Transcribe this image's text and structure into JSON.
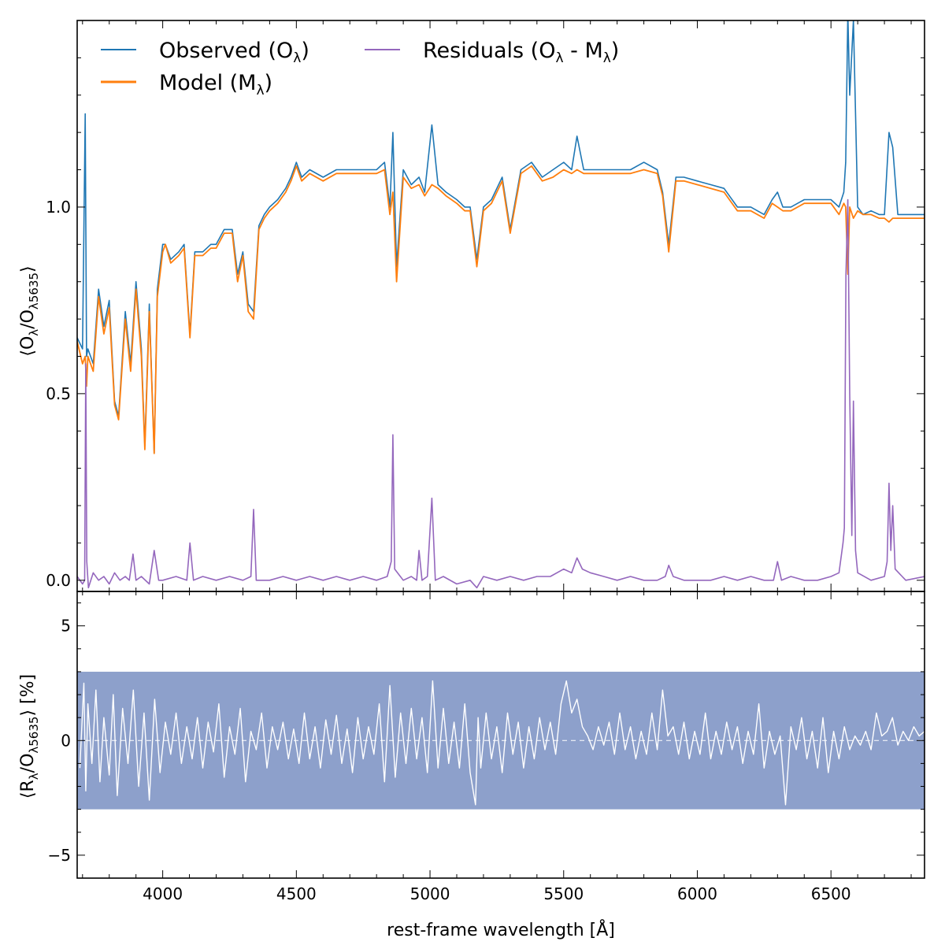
{
  "chart_data": [
    {
      "type": "line",
      "panel": "top",
      "ylabel": "⟨O_λ/O_λ5635⟩",
      "xlim": [
        3680,
        6850
      ],
      "ylim": [
        -0.03,
        1.5
      ],
      "yticks": [
        0.0,
        0.5,
        1.0
      ],
      "ytick_labels": [
        "0.0",
        "0.5",
        "1.0"
      ],
      "legend_position": "top-left",
      "grid": false,
      "series": [
        {
          "name": "Observed (O_λ)",
          "color": "#1f77b4",
          "note_style": "thin",
          "x": [
            3680,
            3700,
            3710,
            3715,
            3720,
            3740,
            3760,
            3780,
            3800,
            3820,
            3835,
            3860,
            3880,
            3900,
            3920,
            3933,
            3950,
            3968,
            3980,
            4000,
            4010,
            4030,
            4060,
            4080,
            4102,
            4120,
            4150,
            4180,
            4200,
            4230,
            4260,
            4280,
            4300,
            4320,
            4340,
            4360,
            4380,
            4400,
            4430,
            4460,
            4480,
            4500,
            4520,
            4550,
            4600,
            4650,
            4700,
            4750,
            4800,
            4830,
            4850,
            4861,
            4875,
            4900,
            4930,
            4959,
            4980,
            5007,
            5030,
            5060,
            5100,
            5130,
            5150,
            5175,
            5200,
            5230,
            5270,
            5300,
            5340,
            5380,
            5420,
            5460,
            5500,
            5530,
            5550,
            5575,
            5600,
            5650,
            5700,
            5750,
            5800,
            5850,
            5870,
            5893,
            5920,
            5950,
            6000,
            6050,
            6100,
            6150,
            6200,
            6250,
            6280,
            6300,
            6320,
            6350,
            6400,
            6450,
            6500,
            6530,
            6548,
            6555,
            6563,
            6570,
            6584,
            6600,
            6620,
            6650,
            6680,
            6700,
            6717,
            6731,
            6750,
            6780,
            6800,
            6850
          ],
          "y": [
            0.65,
            0.62,
            1.25,
            0.6,
            0.62,
            0.58,
            0.78,
            0.68,
            0.75,
            0.48,
            0.44,
            0.72,
            0.58,
            0.8,
            0.62,
            0.36,
            0.74,
            0.34,
            0.78,
            0.9,
            0.9,
            0.86,
            0.88,
            0.9,
            0.66,
            0.88,
            0.88,
            0.9,
            0.9,
            0.94,
            0.94,
            0.82,
            0.88,
            0.74,
            0.72,
            0.95,
            0.98,
            1.0,
            1.02,
            1.05,
            1.08,
            1.12,
            1.08,
            1.1,
            1.08,
            1.1,
            1.1,
            1.1,
            1.1,
            1.12,
            1.0,
            1.2,
            0.84,
            1.1,
            1.06,
            1.08,
            1.04,
            1.22,
            1.06,
            1.04,
            1.02,
            1.0,
            1.0,
            0.86,
            1.0,
            1.02,
            1.08,
            0.94,
            1.1,
            1.12,
            1.08,
            1.1,
            1.12,
            1.1,
            1.19,
            1.1,
            1.1,
            1.1,
            1.1,
            1.1,
            1.12,
            1.1,
            1.04,
            0.9,
            1.08,
            1.08,
            1.07,
            1.06,
            1.05,
            1.0,
            1.0,
            0.98,
            1.02,
            1.04,
            1.0,
            1.0,
            1.02,
            1.02,
            1.02,
            1.0,
            1.04,
            1.12,
            1.52,
            1.3,
            1.5,
            1.0,
            0.98,
            0.99,
            0.98,
            0.98,
            1.2,
            1.16,
            0.98,
            0.98,
            0.98,
            0.98
          ]
        },
        {
          "name": "Model (M_λ)",
          "color": "#ff7f0e",
          "x": [
            3680,
            3700,
            3710,
            3715,
            3720,
            3740,
            3760,
            3780,
            3800,
            3820,
            3835,
            3860,
            3880,
            3900,
            3920,
            3933,
            3950,
            3968,
            3980,
            4000,
            4010,
            4030,
            4060,
            4080,
            4102,
            4120,
            4150,
            4180,
            4200,
            4230,
            4260,
            4280,
            4300,
            4320,
            4340,
            4360,
            4380,
            4400,
            4430,
            4460,
            4480,
            4500,
            4520,
            4550,
            4600,
            4650,
            4700,
            4750,
            4800,
            4830,
            4850,
            4861,
            4875,
            4900,
            4930,
            4959,
            4980,
            5007,
            5030,
            5060,
            5100,
            5130,
            5150,
            5175,
            5200,
            5230,
            5270,
            5300,
            5340,
            5380,
            5420,
            5460,
            5500,
            5530,
            5550,
            5575,
            5600,
            5650,
            5700,
            5750,
            5800,
            5850,
            5870,
            5893,
            5920,
            5950,
            6000,
            6050,
            6100,
            6150,
            6200,
            6250,
            6280,
            6300,
            6320,
            6350,
            6400,
            6450,
            6500,
            6530,
            6548,
            6555,
            6563,
            6570,
            6584,
            6600,
            6620,
            6650,
            6680,
            6700,
            6717,
            6731,
            6750,
            6780,
            6800,
            6850
          ],
          "y": [
            0.64,
            0.58,
            0.6,
            0.52,
            0.6,
            0.56,
            0.76,
            0.66,
            0.73,
            0.47,
            0.43,
            0.7,
            0.56,
            0.78,
            0.6,
            0.35,
            0.72,
            0.34,
            0.76,
            0.88,
            0.9,
            0.85,
            0.87,
            0.89,
            0.65,
            0.87,
            0.87,
            0.89,
            0.89,
            0.93,
            0.93,
            0.8,
            0.87,
            0.72,
            0.7,
            0.94,
            0.97,
            0.99,
            1.01,
            1.04,
            1.07,
            1.11,
            1.07,
            1.09,
            1.07,
            1.09,
            1.09,
            1.09,
            1.09,
            1.1,
            0.98,
            1.04,
            0.8,
            1.08,
            1.05,
            1.06,
            1.03,
            1.06,
            1.05,
            1.03,
            1.01,
            0.99,
            0.99,
            0.84,
            0.99,
            1.01,
            1.07,
            0.93,
            1.09,
            1.11,
            1.07,
            1.08,
            1.1,
            1.09,
            1.1,
            1.09,
            1.09,
            1.09,
            1.09,
            1.09,
            1.1,
            1.09,
            1.03,
            0.88,
            1.07,
            1.07,
            1.06,
            1.05,
            1.04,
            0.99,
            0.99,
            0.97,
            1.01,
            1.0,
            0.99,
            0.99,
            1.01,
            1.01,
            1.01,
            0.98,
            1.01,
            1.0,
            0.82,
            1.0,
            0.97,
            0.99,
            0.98,
            0.98,
            0.97,
            0.97,
            0.96,
            0.97,
            0.97,
            0.97,
            0.97,
            0.97
          ]
        },
        {
          "name": "Residuals (O_λ - M_λ)",
          "color": "#9467bd",
          "x": [
            3680,
            3700,
            3708,
            3712,
            3716,
            3722,
            3740,
            3760,
            3780,
            3800,
            3820,
            3840,
            3860,
            3875,
            3889,
            3900,
            3920,
            3950,
            3968,
            3985,
            4000,
            4050,
            4090,
            4102,
            4115,
            4150,
            4200,
            4250,
            4300,
            4330,
            4340,
            4350,
            4400,
            4450,
            4500,
            4550,
            4600,
            4650,
            4700,
            4750,
            4800,
            4840,
            4855,
            4861,
            4868,
            4900,
            4930,
            4950,
            4959,
            4970,
            4990,
            5007,
            5020,
            5050,
            5100,
            5150,
            5175,
            5200,
            5250,
            5300,
            5350,
            5400,
            5450,
            5500,
            5530,
            5550,
            5570,
            5600,
            5650,
            5700,
            5750,
            5800,
            5850,
            5880,
            5893,
            5910,
            5950,
            6000,
            6050,
            6100,
            6150,
            6200,
            6250,
            6285,
            6300,
            6315,
            6350,
            6400,
            6450,
            6500,
            6530,
            6545,
            6550,
            6556,
            6563,
            6570,
            6578,
            6584,
            6592,
            6600,
            6650,
            6700,
            6710,
            6717,
            6724,
            6731,
            6740,
            6780,
            6850
          ],
          "y": [
            0.01,
            -0.01,
            0.0,
            0.58,
            0.05,
            -0.02,
            0.02,
            0.0,
            0.01,
            -0.01,
            0.02,
            0.0,
            0.01,
            0.0,
            0.07,
            0.0,
            0.01,
            -0.01,
            0.08,
            0.0,
            0.0,
            0.01,
            0.0,
            0.1,
            0.0,
            0.01,
            0.0,
            0.01,
            0.0,
            0.01,
            0.19,
            0.0,
            0.0,
            0.01,
            0.0,
            0.01,
            0.0,
            0.01,
            0.0,
            0.01,
            0.0,
            0.01,
            0.05,
            0.39,
            0.03,
            0.0,
            0.01,
            0.0,
            0.08,
            0.0,
            0.01,
            0.22,
            0.0,
            0.01,
            -0.01,
            0.0,
            -0.02,
            0.01,
            0.0,
            0.01,
            0.0,
            0.01,
            0.01,
            0.03,
            0.02,
            0.06,
            0.03,
            0.02,
            0.01,
            0.0,
            0.01,
            0.0,
            0.0,
            0.01,
            0.04,
            0.01,
            0.0,
            0.0,
            0.0,
            0.01,
            0.0,
            0.01,
            0.0,
            0.0,
            0.05,
            0.0,
            0.01,
            0.0,
            0.0,
            0.01,
            0.02,
            0.1,
            0.14,
            0.82,
            1.02,
            0.5,
            0.12,
            0.48,
            0.08,
            0.02,
            0.0,
            0.01,
            0.05,
            0.26,
            0.08,
            0.2,
            0.03,
            0.0,
            0.01
          ]
        }
      ]
    },
    {
      "type": "line",
      "panel": "bottom",
      "xlabel": "rest-frame wavelength [Å]",
      "ylabel": "⟨R_λ/O_λ5635⟩ [%]",
      "xlim": [
        3680,
        6850
      ],
      "ylim": [
        -6,
        6.5
      ],
      "xticks": [
        4000,
        4500,
        5000,
        5500,
        6000,
        6500
      ],
      "xtick_labels": [
        "4000",
        "4500",
        "5000",
        "5500",
        "6000",
        "6500"
      ],
      "yticks": [
        -5,
        0,
        5
      ],
      "ytick_labels": [
        "−5",
        "0",
        "5"
      ],
      "band": {
        "from": -3,
        "to": 3,
        "color": "#8da0cb"
      },
      "series": [
        {
          "name": "",
          "color": "#ffffff",
          "x": [
            3690,
            3705,
            3712,
            3720,
            3735,
            3750,
            3765,
            3780,
            3800,
            3815,
            3830,
            3850,
            3870,
            3890,
            3910,
            3930,
            3950,
            3970,
            3990,
            4010,
            4030,
            4050,
            4070,
            4090,
            4110,
            4130,
            4150,
            4170,
            4190,
            4210,
            4230,
            4250,
            4270,
            4290,
            4310,
            4330,
            4350,
            4370,
            4390,
            4410,
            4430,
            4450,
            4470,
            4490,
            4510,
            4530,
            4550,
            4570,
            4590,
            4610,
            4630,
            4650,
            4670,
            4690,
            4710,
            4730,
            4750,
            4770,
            4790,
            4810,
            4830,
            4850,
            4870,
            4890,
            4910,
            4930,
            4950,
            4970,
            4990,
            5010,
            5030,
            5050,
            5070,
            5090,
            5110,
            5130,
            5150,
            5170,
            5180,
            5190,
            5210,
            5230,
            5250,
            5270,
            5290,
            5310,
            5330,
            5350,
            5370,
            5390,
            5410,
            5430,
            5450,
            5470,
            5490,
            5510,
            5530,
            5550,
            5570,
            5590,
            5610,
            5630,
            5650,
            5670,
            5690,
            5710,
            5730,
            5750,
            5770,
            5790,
            5810,
            5830,
            5850,
            5870,
            5890,
            5910,
            5930,
            5950,
            5970,
            5990,
            6010,
            6030,
            6050,
            6070,
            6090,
            6110,
            6130,
            6150,
            6170,
            6190,
            6210,
            6230,
            6250,
            6270,
            6290,
            6310,
            6330,
            6350,
            6370,
            6390,
            6410,
            6430,
            6450,
            6470,
            6490,
            6510,
            6530,
            6550,
            6570,
            6590,
            6610,
            6630,
            6650,
            6670,
            6690,
            6710,
            6730,
            6750,
            6770,
            6790,
            6810,
            6830,
            6850
          ],
          "y": [
            -1.2,
            2.5,
            -2.2,
            1.6,
            -1.0,
            2.2,
            -1.8,
            1.0,
            -1.5,
            2.0,
            -2.4,
            1.4,
            -1.0,
            2.2,
            -2.0,
            1.2,
            -2.6,
            1.8,
            -1.4,
            0.8,
            -0.6,
            1.2,
            -1.0,
            0.6,
            -0.8,
            1.0,
            -1.2,
            0.8,
            -0.5,
            1.6,
            -1.6,
            0.6,
            -0.6,
            1.4,
            -1.8,
            0.4,
            -0.4,
            1.2,
            -1.2,
            0.6,
            -0.4,
            0.8,
            -0.8,
            0.5,
            -1.0,
            1.2,
            -0.8,
            0.6,
            -1.2,
            0.9,
            -0.6,
            1.1,
            -1.0,
            0.5,
            -1.4,
            1.0,
            -0.8,
            0.6,
            -0.6,
            1.6,
            -1.8,
            2.4,
            -1.6,
            1.2,
            -1.0,
            1.4,
            -0.8,
            1.0,
            -1.4,
            2.6,
            -1.2,
            1.4,
            -1.0,
            0.8,
            -1.2,
            1.6,
            -1.4,
            -2.8,
            1.0,
            -1.2,
            1.2,
            -0.8,
            0.6,
            -1.4,
            1.2,
            -0.6,
            0.8,
            -1.2,
            0.6,
            -0.8,
            1.0,
            -0.4,
            0.8,
            -0.6,
            1.6,
            2.6,
            1.2,
            1.8,
            0.6,
            0.2,
            -0.4,
            0.6,
            -0.2,
            0.8,
            -0.6,
            1.2,
            -0.4,
            0.6,
            -0.8,
            0.4,
            -0.6,
            1.2,
            -0.4,
            2.2,
            0.2,
            0.6,
            -0.6,
            0.8,
            -0.8,
            0.4,
            -0.6,
            1.2,
            -0.8,
            0.4,
            -0.6,
            0.8,
            -0.4,
            0.6,
            -1.0,
            0.4,
            -0.6,
            1.6,
            -1.2,
            0.4,
            -0.6,
            0.2,
            -2.8,
            0.6,
            -0.4,
            1.0,
            -0.8,
            0.4,
            -1.2,
            1.0,
            -1.4,
            0.4,
            -0.8,
            0.6,
            -0.4,
            0.2,
            -0.2,
            0.4,
            -0.4,
            1.2,
            0.2,
            0.4,
            1.0,
            -0.2,
            0.4,
            0.0,
            0.6,
            0.2,
            0.4
          ]
        }
      ]
    }
  ]
}
